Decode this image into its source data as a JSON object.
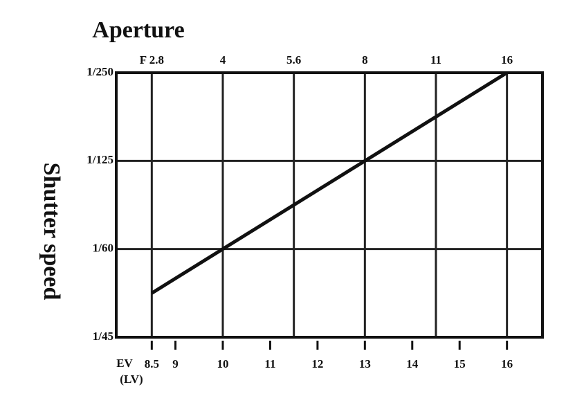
{
  "chart_data": {
    "type": "line",
    "title": "Aperture",
    "y_label": "Shutter speed",
    "x_label": "EV",
    "x_label_note": "(LV)",
    "x": [
      8.5,
      10,
      13,
      16
    ],
    "series": [
      {
        "color": "#111111",
        "values": [
          0.5,
          1,
          2,
          3
        ]
      }
    ],
    "xlim": [
      7.75,
      16.75
    ],
    "xticks": [
      8.5,
      9,
      10,
      11,
      12,
      13,
      14,
      15,
      16
    ],
    "x2ticks": [
      {
        "value": 8.5,
        "label": "F 2.8"
      },
      {
        "value": 10,
        "label": "4"
      },
      {
        "value": 11.5,
        "label": "5.6"
      },
      {
        "value": 13,
        "label": "8"
      },
      {
        "value": 14.5,
        "label": "11"
      },
      {
        "value": 16,
        "label": "16"
      }
    ],
    "ylim": [
      0,
      3
    ],
    "yticks": [
      {
        "value": 0,
        "label": "1/45"
      },
      {
        "value": 1,
        "label": "1/60"
      },
      {
        "value": 2,
        "label": "1/125"
      },
      {
        "value": 3,
        "label": "1/250"
      }
    ],
    "grid": true
  }
}
